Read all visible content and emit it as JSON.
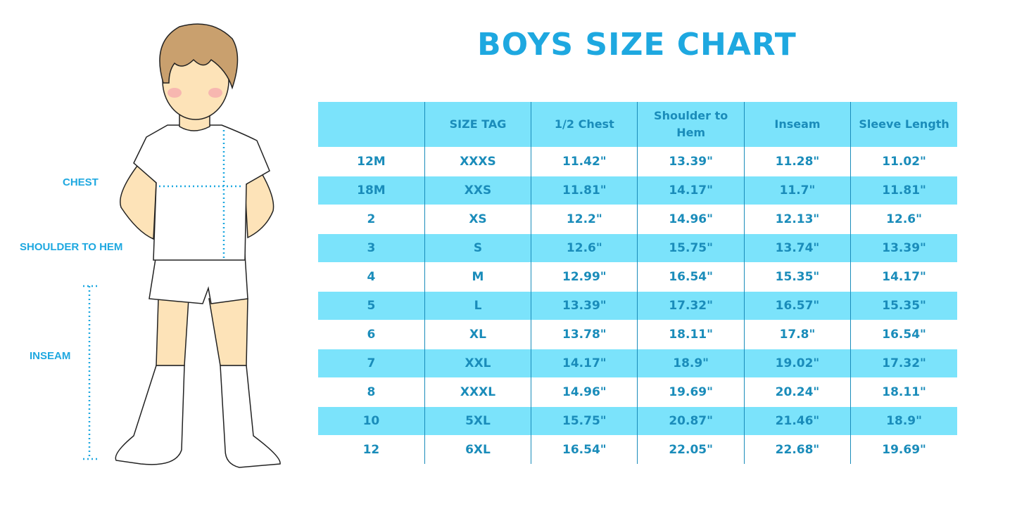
{
  "title": "BOYS SIZE CHART",
  "measure_labels": {
    "chest": "CHEST",
    "shoulder_to_hem": "SHOULDER TO HEM",
    "inseam": "INSEAM"
  },
  "colors": {
    "accent": "#1ea8e0",
    "row_fill": "#7be3fb",
    "text": "#1a8cba"
  },
  "chart_data": {
    "type": "table",
    "title": "BOYS SIZE CHART",
    "columns": [
      "",
      "SIZE TAG",
      "1/2 Chest",
      "Shoulder to Hem",
      "Inseam",
      "Sleeve Length"
    ],
    "rows": [
      [
        "12M",
        "XXXS",
        "11.42\"",
        "13.39\"",
        "11.28\"",
        "11.02\""
      ],
      [
        "18M",
        "XXS",
        "11.81\"",
        "14.17\"",
        "11.7\"",
        "11.81\""
      ],
      [
        "2",
        "XS",
        "12.2\"",
        "14.96\"",
        "12.13\"",
        "12.6\""
      ],
      [
        "3",
        "S",
        "12.6\"",
        "15.75\"",
        "13.74\"",
        "13.39\""
      ],
      [
        "4",
        "M",
        "12.99\"",
        "16.54\"",
        "15.35\"",
        "14.17\""
      ],
      [
        "5",
        "L",
        "13.39\"",
        "17.32\"",
        "16.57\"",
        "15.35\""
      ],
      [
        "6",
        "XL",
        "13.78\"",
        "18.11\"",
        "17.8\"",
        "16.54\""
      ],
      [
        "7",
        "XXL",
        "14.17\"",
        "18.9\"",
        "19.02\"",
        "17.32\""
      ],
      [
        "8",
        "XXXL",
        "14.96\"",
        "19.69\"",
        "20.24\"",
        "18.11\""
      ],
      [
        "10",
        "5XL",
        "15.75\"",
        "20.87\"",
        "21.46\"",
        "18.9\""
      ],
      [
        "12",
        "6XL",
        "16.54\"",
        "22.05\"",
        "22.68\"",
        "19.69\""
      ]
    ]
  }
}
